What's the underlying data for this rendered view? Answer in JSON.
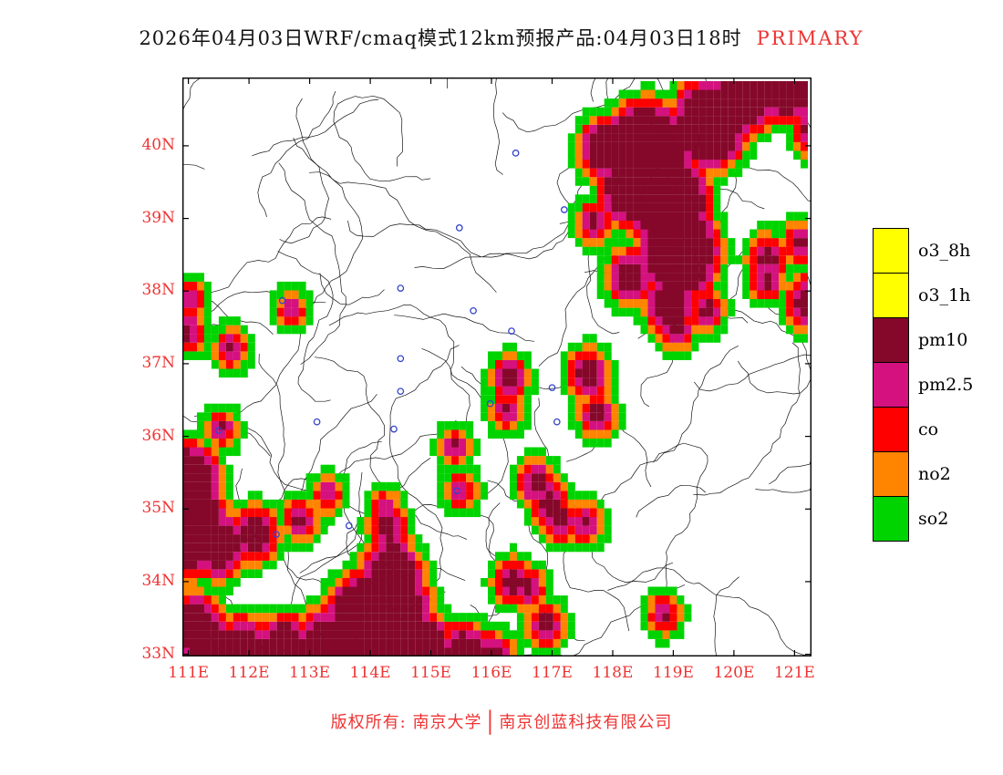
{
  "title": {
    "text": "2026年04月03日WRF/cmaq模式12km预报产品:04月03日18时",
    "highlight": "PRIMARY"
  },
  "legend": {
    "items": [
      {
        "label": "o3_8h",
        "color": "#ffff00"
      },
      {
        "label": "o3_1h",
        "color": "#ffff00"
      },
      {
        "label": "pm10",
        "color": "#85082a"
      },
      {
        "label": "pm2.5",
        "color": "#d4117f"
      },
      {
        "label": "co",
        "color": "#ff0000"
      },
      {
        "label": "no2",
        "color": "#ff8400"
      },
      {
        "label": "so2",
        "color": "#00d400"
      }
    ]
  },
  "axes": {
    "lat_ticks": [
      {
        "label": "40N",
        "value": 40
      },
      {
        "label": "39N",
        "value": 39
      },
      {
        "label": "38N",
        "value": 38
      },
      {
        "label": "37N",
        "value": 37
      },
      {
        "label": "36N",
        "value": 36
      },
      {
        "label": "35N",
        "value": 35
      },
      {
        "label": "34N",
        "value": 34
      },
      {
        "label": "33N",
        "value": 33
      }
    ],
    "lon_ticks": [
      {
        "label": "111E",
        "value": 111
      },
      {
        "label": "112E",
        "value": 112
      },
      {
        "label": "113E",
        "value": 113
      },
      {
        "label": "114E",
        "value": 114
      },
      {
        "label": "115E",
        "value": 115
      },
      {
        "label": "116E",
        "value": 116
      },
      {
        "label": "117E",
        "value": 117
      },
      {
        "label": "118E",
        "value": 118
      },
      {
        "label": "119E",
        "value": 119
      },
      {
        "label": "120E",
        "value": 120
      },
      {
        "label": "121E",
        "value": 121
      }
    ],
    "lon_range": [
      110.9,
      121.28
    ],
    "lat_range": [
      32.97,
      40.94
    ]
  },
  "footer": {
    "left": "版权所有: 南京大学",
    "separator": "│",
    "right": "南京创蓝科技有限公司"
  },
  "colors": {
    "accent_red": "#ee3333",
    "boundary": "#151515",
    "station_blue": "#3344cc",
    "background": "#ffffff"
  },
  "map": {
    "grid_deg": 0.12,
    "stations": [
      [
        116.4,
        39.9
      ],
      [
        117.2,
        39.12
      ],
      [
        115.47,
        38.87
      ],
      [
        114.5,
        38.04
      ],
      [
        112.55,
        37.87
      ],
      [
        115.7,
        37.73
      ],
      [
        116.33,
        37.45
      ],
      [
        114.5,
        37.07
      ],
      [
        114.5,
        36.62
      ],
      [
        113.12,
        36.2
      ],
      [
        117.0,
        36.67
      ],
      [
        115.98,
        36.45
      ],
      [
        114.39,
        36.1
      ],
      [
        115.43,
        35.25
      ],
      [
        113.65,
        34.77
      ],
      [
        112.45,
        34.65
      ],
      [
        111.5,
        36.08
      ],
      [
        117.08,
        36.2
      ]
    ],
    "blobs": [
      [
        118.55,
        39.85,
        0.65
      ],
      [
        118.95,
        39.2,
        0.55
      ],
      [
        119.1,
        38.55,
        0.55
      ],
      [
        118.35,
        39.45,
        0.45
      ],
      [
        119.6,
        40.3,
        0.5
      ],
      [
        120.2,
        40.75,
        0.45
      ],
      [
        120.9,
        40.95,
        0.5
      ],
      [
        117.9,
        39.95,
        0.3
      ],
      [
        117.7,
        38.95,
        0.1
      ],
      [
        118.3,
        38.2,
        0.22
      ],
      [
        118.95,
        37.85,
        0.28
      ],
      [
        119.05,
        37.5,
        0.12
      ],
      [
        119.55,
        37.75,
        0.1
      ],
      [
        120.55,
        38.45,
        0.14
      ],
      [
        120.55,
        38.15,
        0.1
      ],
      [
        121.1,
        38.65,
        0.1
      ],
      [
        121.25,
        37.85,
        0.22
      ],
      [
        121.3,
        40.2,
        0.15
      ],
      [
        116.3,
        36.8,
        0.12
      ],
      [
        117.6,
        36.85,
        0.17
      ],
      [
        117.75,
        36.3,
        0.12
      ],
      [
        116.25,
        36.35,
        0.07
      ],
      [
        115.4,
        35.85,
        0.06
      ],
      [
        115.5,
        35.25,
        0.06
      ],
      [
        116.75,
        35.35,
        0.14
      ],
      [
        116.95,
        35.08,
        0.14
      ],
      [
        117.12,
        34.85,
        0.13
      ],
      [
        117.55,
        34.8,
        0.09
      ],
      [
        116.35,
        34.0,
        0.14
      ],
      [
        116.6,
        33.92,
        0.1
      ],
      [
        116.9,
        33.4,
        0.13
      ],
      [
        118.85,
        33.55,
        0.07
      ],
      [
        111.55,
        36.1,
        0.06
      ],
      [
        112.7,
        37.75,
        0.04
      ],
      [
        111.7,
        37.2,
        0.08
      ],
      [
        111.05,
        37.9,
        0.05
      ],
      [
        110.95,
        37.45,
        0.12
      ],
      [
        113.3,
        35.2,
        0.05
      ],
      [
        114.25,
        35.0,
        0.05
      ],
      [
        110.95,
        35.35,
        0.45
      ],
      [
        111.0,
        34.75,
        0.55
      ],
      [
        111.5,
        34.5,
        0.32
      ],
      [
        112.1,
        34.65,
        0.22
      ],
      [
        112.85,
        34.85,
        0.1
      ],
      [
        114.05,
        33.35,
        0.7
      ],
      [
        114.35,
        34.05,
        0.38
      ],
      [
        114.3,
        34.75,
        0.13
      ],
      [
        114.35,
        34.45,
        0.15
      ],
      [
        113.3,
        33.1,
        0.4
      ],
      [
        112.6,
        33.05,
        0.35
      ],
      [
        111.9,
        33.1,
        0.28
      ],
      [
        111.3,
        33.15,
        0.35
      ],
      [
        111.1,
        33.45,
        0.25
      ],
      [
        114.9,
        33.1,
        0.33
      ],
      [
        115.55,
        33.0,
        0.28
      ],
      [
        116.0,
        32.9,
        0.22
      ],
      [
        114.6,
        33.65,
        0.28
      ]
    ]
  }
}
